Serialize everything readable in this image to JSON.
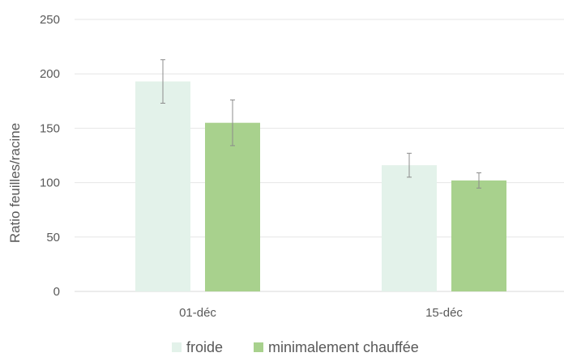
{
  "chart_data": {
    "type": "bar",
    "categories": [
      "01-déc",
      "15-déc"
    ],
    "series": [
      {
        "name": "froide",
        "color": "#e3f2ea",
        "values": [
          193,
          116
        ],
        "errors": [
          20,
          11
        ]
      },
      {
        "name": "minimalement chauffée",
        "color": "#a8d18d",
        "values": [
          155,
          102
        ],
        "errors": [
          21,
          7
        ]
      }
    ],
    "ylabel": "Ratio feuilles/racine",
    "ylim": [
      0,
      250
    ],
    "yticks": [
      0,
      50,
      100,
      150,
      200,
      250
    ],
    "grid": true,
    "legend": "bottom-center",
    "errorbar_color": "#8c8c8c",
    "gridline_color": "#e6e6e6"
  }
}
